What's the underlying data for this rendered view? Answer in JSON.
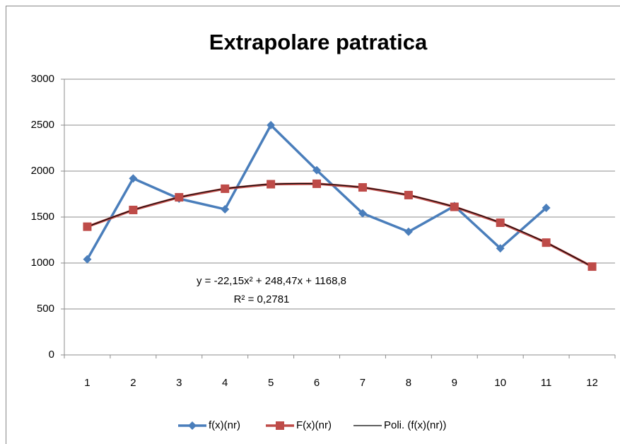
{
  "chart_data": {
    "type": "line",
    "title": "Extrapolare patratica",
    "categories": [
      "1",
      "2",
      "3",
      "4",
      "5",
      "6",
      "7",
      "8",
      "9",
      "10",
      "11",
      "12"
    ],
    "series": [
      {
        "name": "f(x)(nr)",
        "color": "#4a7ebb",
        "marker": "diamond",
        "values": [
          1040,
          1920,
          1700,
          1585,
          2500,
          2010,
          1540,
          1340,
          1620,
          1160,
          1600,
          null
        ]
      },
      {
        "name": "F(x)(nr)",
        "color": "#be4b48",
        "marker": "square",
        "values": [
          1395.1,
          1577.1,
          1714.9,
          1808.3,
          1857.4,
          1862.2,
          1822.7,
          1739.0,
          1610.9,
          1438.5,
          1221.8,
          961.0
        ]
      }
    ],
    "trendline": {
      "name": "Poli. (f(x)(nr))",
      "color": "#000000",
      "equation": "y = -22,15x² + 248,47x + 1168,8",
      "r_squared": "R² = 0,2781"
    },
    "ylim": [
      0,
      3000
    ],
    "yticks": [
      0,
      500,
      1000,
      1500,
      2000,
      2500,
      3000
    ],
    "grid": true,
    "legend": "bottom"
  }
}
